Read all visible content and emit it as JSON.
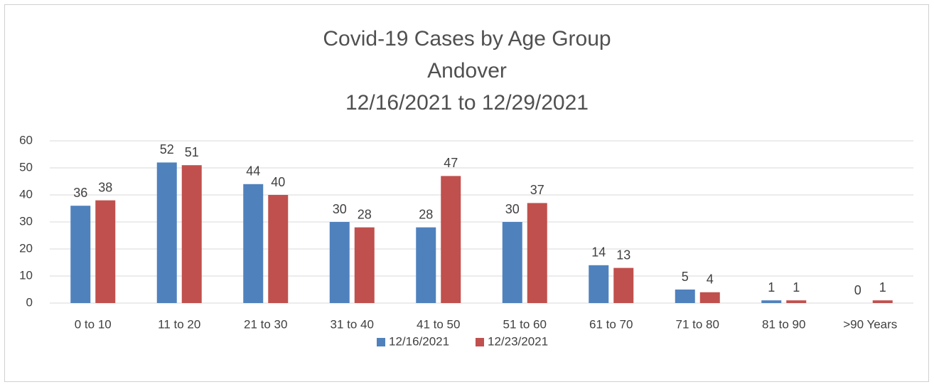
{
  "chart_data": {
    "type": "bar",
    "title": "Covid-19 Cases by Age Group",
    "subtitle": [
      "Andover",
      "12/16/2021 to 12/29/2021"
    ],
    "categories": [
      "0 to 10",
      "11 to 20",
      "21 to 30",
      "31 to 40",
      "41 to 50",
      "51 to 60",
      "61 to 70",
      "71 to 80",
      "81 to 90",
      ">90 Years"
    ],
    "series": [
      {
        "name": "12/16/2021",
        "color": "#4f81bd",
        "values": [
          36,
          52,
          44,
          30,
          28,
          30,
          14,
          5,
          1,
          0
        ]
      },
      {
        "name": "12/23/2021",
        "color": "#c0504d",
        "values": [
          38,
          51,
          40,
          28,
          47,
          37,
          13,
          4,
          1,
          1
        ]
      }
    ],
    "ylim": [
      0,
      60
    ],
    "yticks": [
      0,
      10,
      20,
      30,
      40,
      50,
      60
    ],
    "grid": true,
    "legend": "bottom"
  }
}
